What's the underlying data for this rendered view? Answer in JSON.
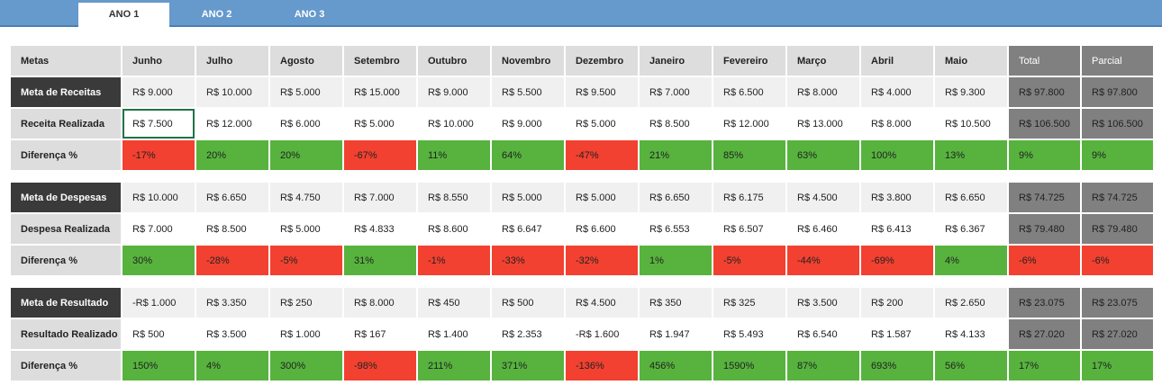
{
  "tabs": [
    "ANO 1",
    "ANO 2",
    "ANO 3"
  ],
  "header": {
    "metas": "Metas",
    "months": [
      "Junho",
      "Julho",
      "Agosto",
      "Setembro",
      "Outubro",
      "Novembro",
      "Dezembro",
      "Janeiro",
      "Fevereiro",
      "Março",
      "Abril",
      "Maio"
    ],
    "total": "Total",
    "parcial": "Parcial"
  },
  "sections": [
    {
      "id": "receitas",
      "meta_label": "Meta de Receitas",
      "meta": [
        "R$ 9.000",
        "R$ 10.000",
        "R$ 5.000",
        "R$ 15.000",
        "R$ 9.000",
        "R$ 5.500",
        "R$ 9.500",
        "R$ 7.000",
        "R$ 6.500",
        "R$ 8.000",
        "R$ 4.000",
        "R$ 9.300"
      ],
      "meta_total": "R$ 97.800",
      "meta_parcial": "R$ 97.800",
      "real_label": "Receita Realizada",
      "real": [
        "R$ 7.500",
        "R$ 12.000",
        "R$ 6.000",
        "R$ 5.000",
        "R$ 10.000",
        "R$ 9.000",
        "R$ 5.000",
        "R$ 8.500",
        "R$ 12.000",
        "R$ 13.000",
        "R$ 8.000",
        "R$ 10.500"
      ],
      "real_total": "R$ 106.500",
      "real_parcial": "R$ 106.500",
      "diff_label": "Diferença %",
      "diff": [
        "-17%",
        "20%",
        "20%",
        "-67%",
        "11%",
        "64%",
        "-47%",
        "21%",
        "85%",
        "63%",
        "100%",
        "13%"
      ],
      "diff_total": "9%",
      "diff_parcial": "9%",
      "diff_status": [
        "neg",
        "pos",
        "pos",
        "neg",
        "pos",
        "pos",
        "neg",
        "pos",
        "pos",
        "pos",
        "pos",
        "pos"
      ],
      "diff_total_status": "pos"
    },
    {
      "id": "despesas",
      "meta_label": "Meta de Despesas",
      "meta": [
        "R$ 10.000",
        "R$ 6.650",
        "R$ 4.750",
        "R$ 7.000",
        "R$ 8.550",
        "R$ 5.000",
        "R$ 5.000",
        "R$ 6.650",
        "R$ 6.175",
        "R$ 4.500",
        "R$ 3.800",
        "R$ 6.650"
      ],
      "meta_total": "R$ 74.725",
      "meta_parcial": "R$ 74.725",
      "real_label": "Despesa Realizada",
      "real": [
        "R$ 7.000",
        "R$ 8.500",
        "R$ 5.000",
        "R$ 4.833",
        "R$ 8.600",
        "R$ 6.647",
        "R$ 6.600",
        "R$ 6.553",
        "R$ 6.507",
        "R$ 6.460",
        "R$ 6.413",
        "R$ 6.367"
      ],
      "real_total": "R$ 79.480",
      "real_parcial": "R$ 79.480",
      "diff_label": "Diferença %",
      "diff": [
        "30%",
        "-28%",
        "-5%",
        "31%",
        "-1%",
        "-33%",
        "-32%",
        "1%",
        "-5%",
        "-44%",
        "-69%",
        "4%"
      ],
      "diff_total": "-6%",
      "diff_parcial": "-6%",
      "diff_status": [
        "pos",
        "neg",
        "neg",
        "pos",
        "neg",
        "neg",
        "neg",
        "pos",
        "neg",
        "neg",
        "neg",
        "pos"
      ],
      "diff_total_status": "neg"
    },
    {
      "id": "resultado",
      "meta_label": "Meta de Resultado",
      "meta": [
        "-R$ 1.000",
        "R$ 3.350",
        "R$ 250",
        "R$ 8.000",
        "R$ 450",
        "R$ 500",
        "R$ 4.500",
        "R$ 350",
        "R$ 325",
        "R$ 3.500",
        "R$ 200",
        "R$ 2.650"
      ],
      "meta_total": "R$ 23.075",
      "meta_parcial": "R$ 23.075",
      "real_label": "Resultado Realizado",
      "real": [
        "R$ 500",
        "R$ 3.500",
        "R$ 1.000",
        "R$ 167",
        "R$ 1.400",
        "R$ 2.353",
        "-R$ 1.600",
        "R$ 1.947",
        "R$ 5.493",
        "R$ 6.540",
        "R$ 1.587",
        "R$ 4.133"
      ],
      "real_total": "R$ 27.020",
      "real_parcial": "R$ 27.020",
      "diff_label": "Diferença %",
      "diff": [
        "150%",
        "4%",
        "300%",
        "-98%",
        "211%",
        "371%",
        "-136%",
        "456%",
        "1590%",
        "87%",
        "693%",
        "56%"
      ],
      "diff_total": "17%",
      "diff_parcial": "17%",
      "diff_status": [
        "pos",
        "pos",
        "pos",
        "neg",
        "pos",
        "pos",
        "neg",
        "pos",
        "pos",
        "pos",
        "pos",
        "pos"
      ],
      "diff_total_status": "pos"
    }
  ],
  "colors": {
    "topbar": "#6699cc",
    "positive": "#57b33e",
    "negative": "#f24130",
    "total": "#808080",
    "label_dark": "#3a3a3a",
    "selection": "#217346"
  }
}
